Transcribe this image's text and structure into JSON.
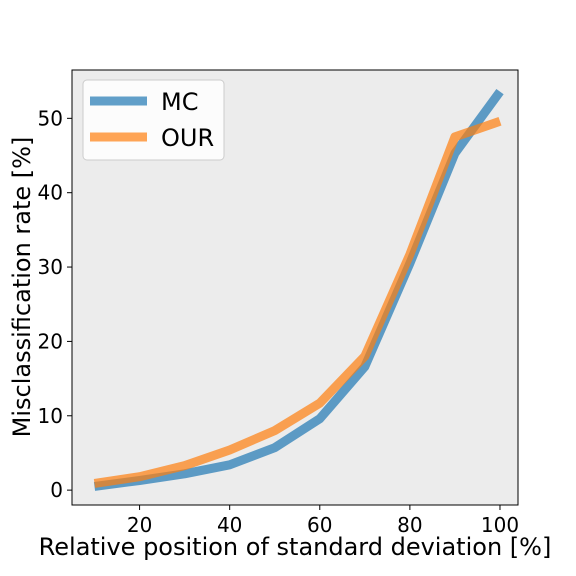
{
  "chart_data": {
    "type": "line",
    "xlabel": "Relative position of standard deviation [%]",
    "ylabel": "Misclassification rate [%]",
    "xlim": [
      5,
      104
    ],
    "ylim": [
      -2,
      56.5
    ],
    "xticks": [
      20,
      40,
      60,
      80,
      100
    ],
    "yticks": [
      0,
      10,
      20,
      30,
      40,
      50
    ],
    "grid": false,
    "background": "#ececec",
    "legend": {
      "position": "upper-left"
    },
    "x": [
      10,
      20,
      30,
      40,
      50,
      60,
      70,
      80,
      90,
      100
    ],
    "series": [
      {
        "name": "MC",
        "color": "#1f77b4",
        "values": [
          0.5,
          1.3,
          2.2,
          3.4,
          5.7,
          9.6,
          16.6,
          30.5,
          45.3,
          53.6
        ]
      },
      {
        "name": "OUR",
        "color": "#ff7f0e",
        "values": [
          0.9,
          1.8,
          3.3,
          5.4,
          8.0,
          11.7,
          18.0,
          31.7,
          47.5,
          49.6
        ]
      }
    ]
  }
}
